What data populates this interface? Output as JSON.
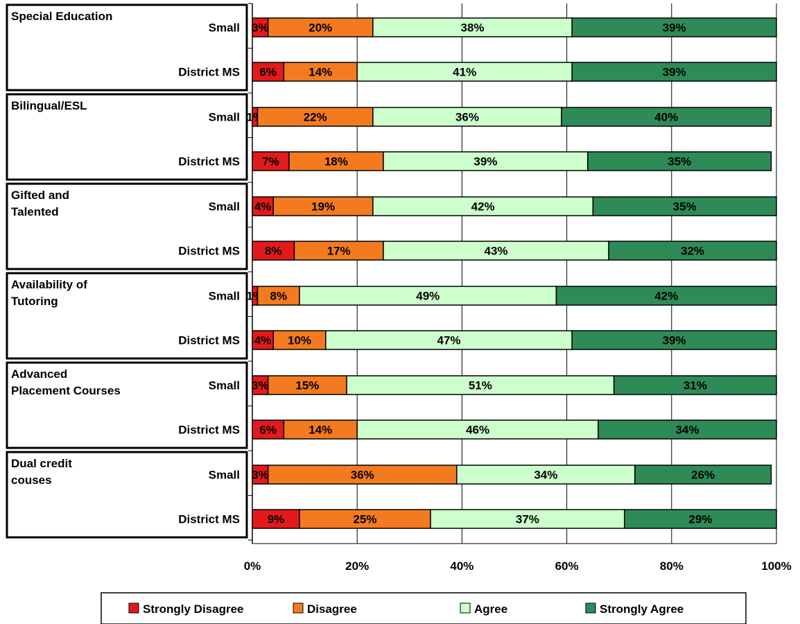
{
  "chart_data": {
    "type": "bar",
    "orientation": "horizontal",
    "stacked": true,
    "groups": [
      {
        "label": "Special Education",
        "rows": [
          {
            "label": "Small",
            "values": [
              3,
              20,
              38,
              39
            ]
          },
          {
            "label": "District MS",
            "values": [
              6,
              14,
              41,
              39
            ]
          }
        ]
      },
      {
        "label": "Bilingual/ESL",
        "rows": [
          {
            "label": "Small",
            "values": [
              1,
              22,
              36,
              40
            ]
          },
          {
            "label": "District MS",
            "values": [
              7,
              18,
              39,
              35
            ]
          }
        ]
      },
      {
        "label": "Gifted and Talented",
        "rows": [
          {
            "label": "Small",
            "values": [
              4,
              19,
              42,
              35
            ]
          },
          {
            "label": "District MS",
            "values": [
              8,
              17,
              43,
              32
            ]
          }
        ]
      },
      {
        "label": "Availability of Tutoring",
        "rows": [
          {
            "label": "Small",
            "values": [
              1,
              8,
              49,
              42
            ]
          },
          {
            "label": "District MS",
            "values": [
              4,
              10,
              47,
              39
            ]
          }
        ]
      },
      {
        "label": "Advanced Placement Courses",
        "rows": [
          {
            "label": "Small",
            "values": [
              3,
              15,
              51,
              31
            ]
          },
          {
            "label": "District MS",
            "values": [
              6,
              14,
              46,
              34
            ]
          }
        ]
      },
      {
        "label": "Dual credit couses",
        "rows": [
          {
            "label": "Small",
            "values": [
              3,
              36,
              34,
              26
            ]
          },
          {
            "label": "District MS",
            "values": [
              9,
              25,
              37,
              29
            ]
          }
        ]
      }
    ],
    "series": [
      {
        "name": "Strongly Disagree",
        "color": "#e31a1c"
      },
      {
        "name": "Disagree",
        "color": "#f47a20"
      },
      {
        "name": "Agree",
        "color": "#ccffcc"
      },
      {
        "name": "Strongly Agree",
        "color": "#2e8b57"
      }
    ],
    "x_ticks": [
      "0%",
      "20%",
      "40%",
      "60%",
      "80%",
      "100%"
    ],
    "xlim": [
      0,
      100
    ],
    "grid": true,
    "legend_position": "bottom"
  }
}
